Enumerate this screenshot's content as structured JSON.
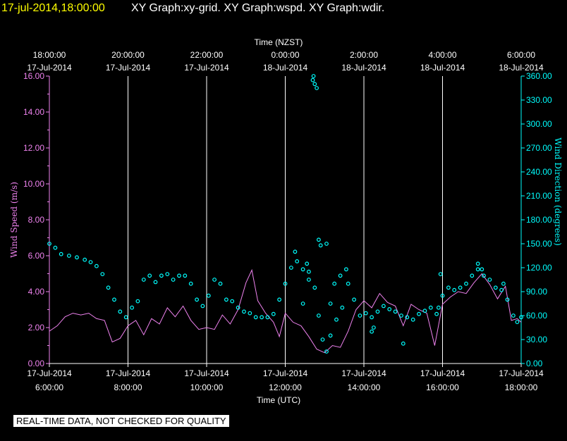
{
  "header": {
    "timestamp": "17-jul-2014,18:00:00",
    "graphs": "XY Graph:xy-grid.  XY Graph:wspd.  XY Graph:wdir.",
    "timestamp_color": "#ffff00",
    "graphs_color": "#ffffff"
  },
  "disclaimer": "REAL-TIME DATA, NOT CHECKED FOR QUALITY",
  "chart_data": {
    "type": "line",
    "x_bottom_label": "Time (UTC)",
    "x_top_label": "Time (NZST)",
    "x_range_hours_utc": [
      6,
      18
    ],
    "x_bottom_ticks": [
      {
        "hour": 6,
        "date": "17-Jul-2014",
        "time": "6:00:00"
      },
      {
        "hour": 8,
        "date": "17-Jul-2014",
        "time": "8:00:00"
      },
      {
        "hour": 10,
        "date": "17-Jul-2014",
        "time": "10:00:00"
      },
      {
        "hour": 12,
        "date": "17-Jul-2014",
        "time": "12:00:00"
      },
      {
        "hour": 14,
        "date": "17-Jul-2014",
        "time": "14:00:00"
      },
      {
        "hour": 16,
        "date": "17-Jul-2014",
        "time": "16:00:00"
      },
      {
        "hour": 18,
        "date": "17-Jul-2014",
        "time": "18:00:00"
      }
    ],
    "x_top_ticks": [
      {
        "hour": 6,
        "time": "18:00:00",
        "date": "17-Jul-2014"
      },
      {
        "hour": 8,
        "time": "20:00:00",
        "date": "17-Jul-2014"
      },
      {
        "hour": 10,
        "time": "22:00:00",
        "date": "17-Jul-2014"
      },
      {
        "hour": 12,
        "time": "0:00:00",
        "date": "18-Jul-2014"
      },
      {
        "hour": 14,
        "time": "2:00:00",
        "date": "18-Jul-2014"
      },
      {
        "hour": 16,
        "time": "4:00:00",
        "date": "18-Jul-2014"
      },
      {
        "hour": 18,
        "time": "6:00:00",
        "date": "18-Jul-2014"
      }
    ],
    "grid": "vertical",
    "left_axis": {
      "label": "Wind Speed (m/s)",
      "range": [
        0,
        16
      ],
      "ticks": [
        "0.00",
        "2.00",
        "4.00",
        "6.00",
        "8.00",
        "10.00",
        "12.00",
        "14.00",
        "16.00"
      ],
      "color": "#ee82ee"
    },
    "right_axis": {
      "label": "Wind Direction (degrees)",
      "range": [
        0,
        360
      ],
      "ticks": [
        "0.00",
        "30.00",
        "60.00",
        "90.00",
        "120.00",
        "150.00",
        "180.00",
        "210.00",
        "240.00",
        "270.00",
        "300.00",
        "330.00",
        "360.00"
      ],
      "color": "#00ffff"
    },
    "series": [
      {
        "name": "wspd",
        "axis": "left",
        "style": "line",
        "color": "#ee82ee",
        "points": [
          [
            6.0,
            1.8
          ],
          [
            6.2,
            2.1
          ],
          [
            6.4,
            2.6
          ],
          [
            6.6,
            2.8
          ],
          [
            6.8,
            2.7
          ],
          [
            7.0,
            2.8
          ],
          [
            7.2,
            2.5
          ],
          [
            7.4,
            2.4
          ],
          [
            7.6,
            1.2
          ],
          [
            7.8,
            1.4
          ],
          [
            8.0,
            2.1
          ],
          [
            8.2,
            2.4
          ],
          [
            8.4,
            1.6
          ],
          [
            8.6,
            2.5
          ],
          [
            8.8,
            2.2
          ],
          [
            9.0,
            3.1
          ],
          [
            9.2,
            2.6
          ],
          [
            9.4,
            3.2
          ],
          [
            9.6,
            2.4
          ],
          [
            9.8,
            1.9
          ],
          [
            10.0,
            2.0
          ],
          [
            10.2,
            1.9
          ],
          [
            10.4,
            2.7
          ],
          [
            10.6,
            2.2
          ],
          [
            10.8,
            3.0
          ],
          [
            11.0,
            4.5
          ],
          [
            11.15,
            5.2
          ],
          [
            11.3,
            3.5
          ],
          [
            11.5,
            2.8
          ],
          [
            11.7,
            2.3
          ],
          [
            11.85,
            1.5
          ],
          [
            12.0,
            2.8
          ],
          [
            12.2,
            2.3
          ],
          [
            12.4,
            2.1
          ],
          [
            12.6,
            1.5
          ],
          [
            12.8,
            0.8
          ],
          [
            13.0,
            0.6
          ],
          [
            13.2,
            1.0
          ],
          [
            13.4,
            0.9
          ],
          [
            13.6,
            1.8
          ],
          [
            13.8,
            3.0
          ],
          [
            14.0,
            3.5
          ],
          [
            14.2,
            3.1
          ],
          [
            14.4,
            3.9
          ],
          [
            14.6,
            3.4
          ],
          [
            14.8,
            3.2
          ],
          [
            15.0,
            2.1
          ],
          [
            15.2,
            3.3
          ],
          [
            15.4,
            3.0
          ],
          [
            15.6,
            2.8
          ],
          [
            15.8,
            1.0
          ],
          [
            16.0,
            3.3
          ],
          [
            16.2,
            3.7
          ],
          [
            16.4,
            4.0
          ],
          [
            16.6,
            3.9
          ],
          [
            16.8,
            4.5
          ],
          [
            17.0,
            5.0
          ],
          [
            17.2,
            4.4
          ],
          [
            17.4,
            3.6
          ],
          [
            17.6,
            4.3
          ],
          [
            17.75,
            2.4
          ],
          [
            17.9,
            2.5
          ],
          [
            18.0,
            2.3
          ]
        ]
      },
      {
        "name": "wdir",
        "axis": "right",
        "style": "markers",
        "color": "#00ffff",
        "points": [
          [
            6.0,
            150
          ],
          [
            6.15,
            145
          ],
          [
            6.3,
            137
          ],
          [
            6.5,
            135
          ],
          [
            6.7,
            133
          ],
          [
            6.9,
            130
          ],
          [
            7.05,
            127
          ],
          [
            7.2,
            122
          ],
          [
            7.35,
            112
          ],
          [
            7.5,
            95
          ],
          [
            7.65,
            80
          ],
          [
            7.8,
            65
          ],
          [
            7.95,
            58
          ],
          [
            8.1,
            70
          ],
          [
            8.25,
            78
          ],
          [
            8.4,
            105
          ],
          [
            8.55,
            110
          ],
          [
            8.7,
            102
          ],
          [
            8.85,
            110
          ],
          [
            9.0,
            112
          ],
          [
            9.15,
            105
          ],
          [
            9.3,
            110
          ],
          [
            9.45,
            110
          ],
          [
            9.6,
            100
          ],
          [
            9.75,
            80
          ],
          [
            9.9,
            72
          ],
          [
            10.05,
            85
          ],
          [
            10.2,
            105
          ],
          [
            10.35,
            100
          ],
          [
            10.5,
            80
          ],
          [
            10.65,
            78
          ],
          [
            10.8,
            70
          ],
          [
            10.95,
            65
          ],
          [
            11.1,
            63
          ],
          [
            11.25,
            58
          ],
          [
            11.4,
            58
          ],
          [
            11.55,
            58
          ],
          [
            11.7,
            62
          ],
          [
            11.85,
            80
          ],
          [
            12.0,
            100
          ],
          [
            12.15,
            120
          ],
          [
            12.3,
            128
          ],
          [
            12.45,
            118
          ],
          [
            12.6,
            105
          ],
          [
            12.75,
            95
          ],
          [
            12.85,
            60
          ],
          [
            12.95,
            30
          ],
          [
            13.05,
            15
          ],
          [
            13.15,
            35
          ],
          [
            13.3,
            55
          ],
          [
            13.45,
            70
          ],
          [
            13.6,
            100
          ],
          [
            13.75,
            80
          ],
          [
            13.9,
            60
          ],
          [
            14.05,
            63
          ],
          [
            14.2,
            58
          ],
          [
            14.35,
            65
          ],
          [
            14.5,
            72
          ],
          [
            14.65,
            68
          ],
          [
            14.8,
            65
          ],
          [
            14.95,
            60
          ],
          [
            15.1,
            58
          ],
          [
            15.25,
            55
          ],
          [
            15.4,
            62
          ],
          [
            15.55,
            66
          ],
          [
            15.7,
            70
          ],
          [
            15.85,
            62
          ],
          [
            16.0,
            85
          ],
          [
            16.15,
            95
          ],
          [
            16.3,
            92
          ],
          [
            16.45,
            95
          ],
          [
            16.6,
            100
          ],
          [
            16.75,
            110
          ],
          [
            16.9,
            118
          ],
          [
            17.05,
            110
          ],
          [
            17.2,
            105
          ],
          [
            17.35,
            95
          ],
          [
            17.5,
            92
          ],
          [
            17.65,
            80
          ],
          [
            17.8,
            60
          ],
          [
            17.9,
            52
          ],
          [
            18.0,
            58
          ]
        ],
        "outliers": [
          [
            12.7,
            355
          ],
          [
            12.75,
            350
          ],
          [
            12.8,
            345
          ],
          [
            12.72,
            360
          ],
          [
            12.6,
            115
          ],
          [
            12.55,
            125
          ],
          [
            12.85,
            155
          ],
          [
            12.9,
            148
          ],
          [
            13.05,
            150
          ],
          [
            13.15,
            75
          ],
          [
            13.25,
            100
          ],
          [
            13.4,
            110
          ],
          [
            13.55,
            118
          ],
          [
            12.25,
            140
          ],
          [
            12.45,
            75
          ],
          [
            14.25,
            45
          ],
          [
            14.2,
            40
          ],
          [
            15.0,
            25
          ],
          [
            15.9,
            70
          ],
          [
            15.95,
            112
          ],
          [
            16.9,
            125
          ],
          [
            17.55,
            100
          ],
          [
            17.0,
            118
          ]
        ]
      }
    ]
  }
}
